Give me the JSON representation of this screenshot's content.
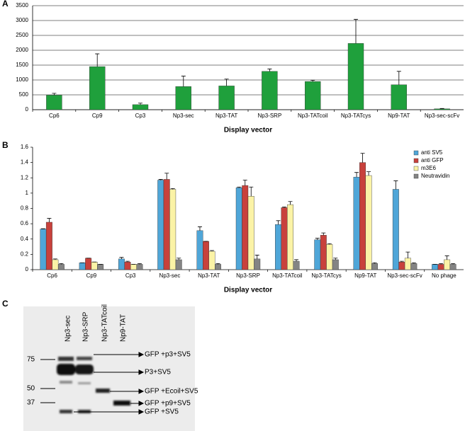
{
  "chart_data": [
    {
      "type": "bar",
      "panel": "A",
      "x_label": "Display vector",
      "categories": [
        "Cp6",
        "Cp9",
        "Cp3",
        "Np3-sec",
        "Np3-TAT",
        "Np3-SRP",
        "Np3-TATcoil",
        "Np3-TATcys",
        "Np9-TAT",
        "Np3-sec-scFv"
      ],
      "values": [
        490,
        1450,
        170,
        780,
        800,
        1290,
        950,
        2230,
        840,
        30
      ],
      "errors": [
        60,
        430,
        50,
        350,
        230,
        80,
        40,
        810,
        450,
        10
      ],
      "color": "#1fa03c",
      "ylim": [
        0,
        3500
      ],
      "yticks": [
        0,
        500,
        1000,
        1500,
        2000,
        2500,
        3000,
        3500
      ],
      "grid": true
    },
    {
      "type": "bar",
      "panel": "B",
      "x_label": "Display vector",
      "categories": [
        "Cp6",
        "Cp9",
        "Cp3",
        "Np3-sec",
        "Np3-TAT",
        "Np3-SRP",
        "Np3-TATcoil",
        "Np3-TATcys",
        "Np9-TAT",
        "Np3-sec-scFv",
        "No phage"
      ],
      "series": [
        {
          "name": "anti SV5",
          "color": "#4fa6d8",
          "values": [
            0.53,
            0.09,
            0.14,
            1.17,
            0.51,
            1.07,
            0.59,
            0.39,
            1.21,
            1.05,
            0.07
          ],
          "errors": [
            0.005,
            0,
            0.02,
            0.01,
            0.05,
            0.01,
            0.05,
            0.02,
            0.06,
            0.11,
            0
          ]
        },
        {
          "name": "anti GFP",
          "color": "#c8413c",
          "values": [
            0.62,
            0.15,
            0.1,
            1.18,
            0.37,
            1.1,
            0.81,
            0.45,
            1.4,
            0.1,
            0.07
          ],
          "errors": [
            0.05,
            0,
            0.01,
            0.08,
            0,
            0.07,
            0.01,
            0.03,
            0.12,
            0.01,
            0.01
          ]
        },
        {
          "name": "m3E6",
          "color": "#fbf3a6",
          "values": [
            0.13,
            0.1,
            0.07,
            1.05,
            0.24,
            0.96,
            0.85,
            0.33,
            1.23,
            0.15,
            0.13
          ],
          "errors": [
            0.01,
            0,
            0,
            0.01,
            0.01,
            0.12,
            0.04,
            0.01,
            0.05,
            0.08,
            0.05
          ]
        },
        {
          "name": "Neutravidin",
          "color": "#848484",
          "values": [
            0.07,
            0.07,
            0.07,
            0.13,
            0.07,
            0.14,
            0.11,
            0.13,
            0.08,
            0.08,
            0.07
          ],
          "errors": [
            0.01,
            0,
            0.01,
            0.02,
            0.01,
            0.05,
            0.02,
            0.02,
            0.01,
            0.01,
            0.01
          ]
        }
      ],
      "legend": "upper right",
      "ylim": [
        0,
        1.6
      ],
      "yticks": [
        0,
        0.2,
        0.4,
        0.6,
        0.8,
        1,
        1.2,
        1.4,
        1.6
      ],
      "grid": false
    }
  ],
  "gel": {
    "panel": "C",
    "lanes": [
      "Np3-sec",
      "Np3-SRP",
      "Np3-TATcoil",
      "Np9-TAT"
    ],
    "markers": [
      75,
      50,
      37
    ],
    "bands": [
      "GFP +p3+SV5",
      "P3+SV5",
      "GFP +Ecoil+SV5",
      "GFP +p9+SV5",
      "GFP +SV5"
    ]
  }
}
